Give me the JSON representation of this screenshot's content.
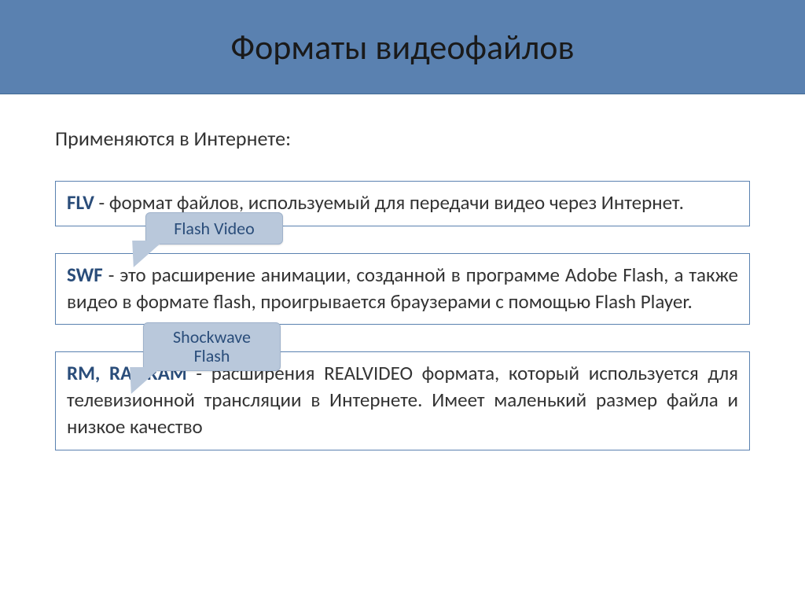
{
  "title": "Форматы видеофайлов",
  "intro": "Применяются в Интернете:",
  "callouts": {
    "c1": "Flash Video",
    "c2": "Shockwave Flash"
  },
  "boxes": {
    "b1": {
      "fmt": "FLV",
      "text": " - формат файлов, используемый для передачи видео через Интернет."
    },
    "b2": {
      "fmt": "SWF",
      "text": " - это расширение анимации, созданной в программе Adobe Flash, а также видео в формате flash, проигрывается браузерами с помощью Flash Player."
    },
    "b3": {
      "fmt": "RM, RA, RAM",
      "text": " - расширения REALVIDEO формата, который используется для телевизионной трансляции в Интернете. Имеет маленький размер файла и низкое качество"
    }
  },
  "colors": {
    "title_bg": "#5a81b0",
    "box_border": "#5a81b0",
    "callout_bg": "#b9c8db",
    "callout_border": "#9fb2cb",
    "fmt_color": "#2a4d7a",
    "text_color": "#333333"
  },
  "typography": {
    "title_fontsize": 44,
    "body_fontsize": 25,
    "callout_fontsize": 22
  }
}
